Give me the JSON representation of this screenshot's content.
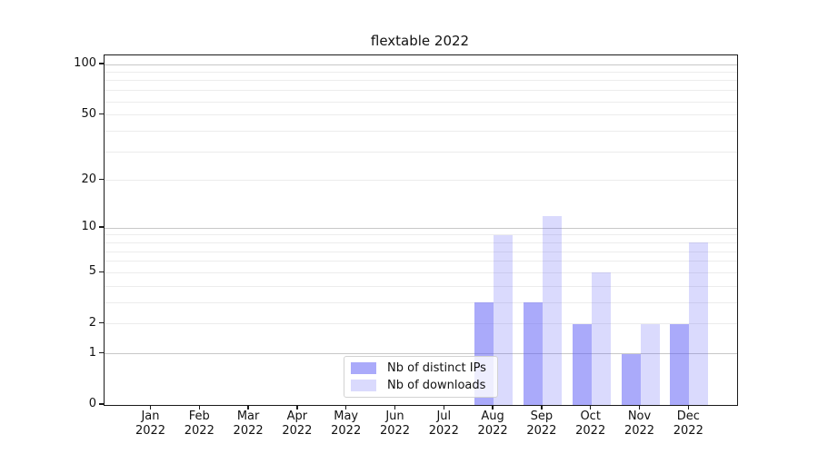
{
  "title": "flextable 2022",
  "chart_data": {
    "type": "bar",
    "title": "flextable 2022",
    "x_categories": [
      "Jan 2022",
      "Feb 2022",
      "Mar 2022",
      "Apr 2022",
      "May 2022",
      "Jun 2022",
      "Jul 2022",
      "Aug 2022",
      "Sep 2022",
      "Oct 2022",
      "Nov 2022",
      "Dec 2022"
    ],
    "series": [
      {
        "name": "Nb of distinct IPs",
        "color": "rgba(85,85,245,0.5)",
        "values": [
          0,
          0,
          0,
          0,
          0,
          0,
          0,
          3,
          3,
          2,
          1,
          2
        ]
      },
      {
        "name": "Nb of downloads",
        "color": "rgba(85,85,245,0.22)",
        "values": [
          0,
          0,
          0,
          0,
          0,
          0,
          0,
          9,
          12,
          5,
          2,
          8
        ]
      }
    ],
    "xlabel": "",
    "ylabel": "",
    "y_scale": "log1p",
    "y_ticks": [
      0,
      1,
      2,
      5,
      10,
      20,
      50,
      100
    ],
    "y_major_gridlines": [
      1,
      10,
      100
    ],
    "y_minor_gridlines": [
      2,
      3,
      4,
      5,
      6,
      7,
      8,
      9,
      20,
      30,
      40,
      50,
      60,
      70,
      80,
      90
    ],
    "ylim": [
      0,
      113.3
    ],
    "grid": true,
    "legend_position": "inside-bottom-center",
    "colors": {
      "grid_major": "#c8c8c8",
      "grid_minor": "#ececec",
      "axis": "#1a1a1a",
      "text": "#111111"
    }
  }
}
